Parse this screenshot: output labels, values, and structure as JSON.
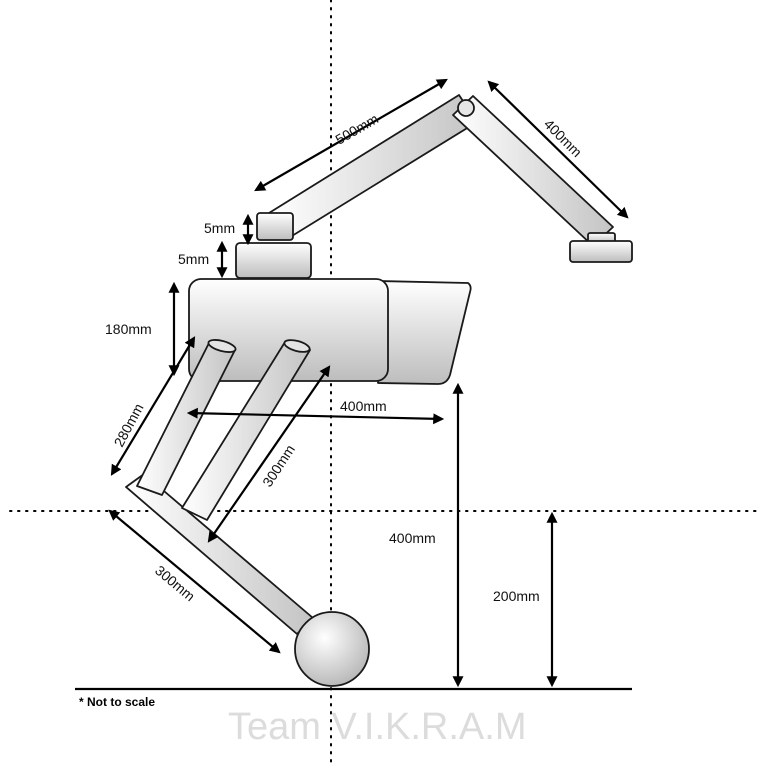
{
  "colors": {
    "part_fill_light": "#ffffff",
    "part_fill_dark": "#bdbdbd",
    "outline": "#1a1a1a",
    "watermark": "#dcdcdc"
  },
  "dimensions": {
    "upper_arm_length": "500mm",
    "forearm_length": "400mm",
    "top_block_gap": "5mm",
    "lower_block_gap": "5mm",
    "body_height": "180mm",
    "leg_upper_link": "280mm",
    "leg_parallel_link": "300mm",
    "body_length": "400mm",
    "body_ground_clearance": "400mm",
    "hip_height": "200mm",
    "leg_lower_link": "300mm"
  },
  "note": "* Not to scale",
  "watermark": "Team V.I.K.R.A.M"
}
